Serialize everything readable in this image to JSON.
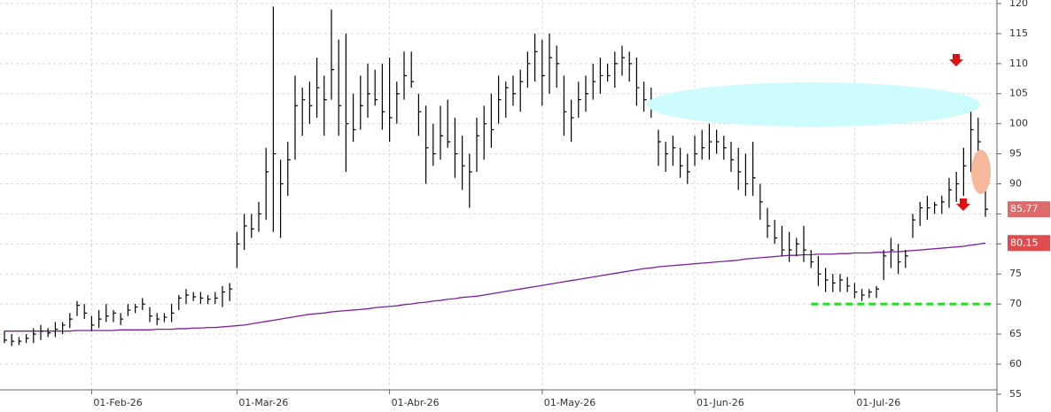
{
  "chart_data": {
    "type": "ohlc",
    "categories": [
      null,
      null,
      null,
      null,
      null,
      null,
      null,
      null,
      null,
      null,
      null,
      null,
      "01-Feb-26",
      null,
      null,
      null,
      null,
      null,
      null,
      null,
      null,
      null,
      null,
      null,
      null,
      null,
      null,
      null,
      null,
      null,
      null,
      null,
      "01-Mar-26",
      null,
      null,
      null,
      null,
      null,
      null,
      null,
      null,
      null,
      null,
      null,
      null,
      null,
      null,
      null,
      null,
      null,
      null,
      null,
      null,
      "01-Abr-26",
      null,
      null,
      null,
      null,
      null,
      null,
      null,
      null,
      null,
      null,
      null,
      null,
      null,
      null,
      null,
      null,
      null,
      null,
      null,
      null,
      "01-May-26",
      null,
      null,
      null,
      null,
      null,
      null,
      null,
      null,
      null,
      null,
      null,
      null,
      null,
      null,
      null,
      null,
      null,
      null,
      null,
      null,
      "01-Jun-26",
      null,
      null,
      null,
      null,
      null,
      null,
      null,
      null,
      null,
      null,
      null,
      null,
      null,
      null,
      null,
      null,
      null,
      null,
      null,
      null,
      null,
      "01-Jul-26",
      null,
      null,
      null,
      null,
      null,
      null,
      null,
      null,
      null,
      null,
      null,
      null,
      null,
      null,
      null,
      null,
      null,
      null
    ],
    "high": [
      65.5,
      65,
      64.5,
      65,
      66,
      66.5,
      66,
      67,
      67,
      68.5,
      70.5,
      70,
      68,
      69,
      70,
      69,
      68.5,
      70,
      70,
      71,
      69.5,
      68.5,
      68.5,
      70,
      71.5,
      72.5,
      72,
      72,
      71.5,
      72,
      73,
      73.5,
      82,
      85,
      85,
      87,
      96,
      119.5,
      94,
      97,
      108,
      106,
      107,
      111,
      108,
      119,
      114,
      115,
      105,
      108,
      110,
      109,
      110,
      111,
      107,
      112,
      112,
      105,
      103,
      100,
      103,
      104,
      101,
      98,
      95,
      101,
      103,
      105,
      108,
      107,
      108,
      109,
      112,
      115,
      114,
      115,
      113,
      108,
      104,
      107,
      108,
      110,
      111,
      110,
      112,
      113,
      112,
      111,
      107,
      106,
      99,
      97,
      98,
      96,
      95,
      98,
      99,
      100,
      99,
      98,
      97,
      96,
      95,
      97,
      90,
      86,
      84,
      83,
      82,
      81,
      83,
      79,
      78,
      76,
      75,
      75,
      74.5,
      73.5,
      72.5,
      72.5,
      73,
      79,
      81,
      80,
      79,
      85,
      87,
      88,
      87,
      88,
      91,
      92,
      96,
      102,
      101,
      89
    ],
    "low": [
      63.5,
      63,
      63.2,
      63.5,
      63.5,
      64,
      64.5,
      64.5,
      65,
      66,
      68,
      67.5,
      65.5,
      66,
      67,
      67,
      66.5,
      68,
      68.5,
      69,
      67,
      66.5,
      67,
      67,
      69,
      70,
      70.5,
      70,
      70,
      70,
      69.5,
      70.5,
      76,
      79,
      81,
      82,
      84,
      82,
      81,
      88,
      94,
      98,
      100,
      101,
      98,
      104,
      98,
      92,
      97,
      99,
      101,
      103,
      99,
      97,
      100,
      104,
      106,
      98,
      90,
      93,
      94,
      96,
      91,
      89,
      86,
      92,
      94,
      96,
      100,
      101,
      103,
      102,
      106,
      107,
      103,
      105,
      106,
      98,
      97,
      101,
      102,
      104,
      105,
      107,
      106,
      108,
      107,
      103,
      102,
      101,
      93,
      92,
      93,
      91,
      90,
      93,
      94,
      94,
      95,
      94,
      92,
      89,
      88,
      88,
      84,
      81,
      80,
      78,
      77,
      78,
      77,
      76,
      73,
      72,
      72,
      72,
      72,
      71,
      70.5,
      71,
      71,
      74,
      76,
      75,
      76,
      81,
      83,
      84,
      85,
      85,
      86,
      87,
      88,
      92,
      95,
      84.5
    ],
    "close": [
      64,
      63.8,
      63.8,
      64.3,
      65,
      65.5,
      65.2,
      65.8,
      66.5,
      67.5,
      69.8,
      68.5,
      66.5,
      67.5,
      68,
      68.5,
      67.5,
      69,
      69.5,
      70,
      68,
      67.5,
      67.8,
      68.5,
      71,
      71.5,
      71.2,
      71,
      70.8,
      71,
      72,
      72.5,
      80,
      83,
      82.5,
      85,
      92,
      95,
      90,
      94,
      103,
      104,
      103,
      106,
      104,
      109,
      103,
      100,
      99,
      103,
      105,
      104,
      102,
      101,
      105,
      108,
      107,
      102,
      96,
      95,
      98,
      97,
      95,
      93,
      92,
      98,
      100,
      99,
      104,
      106,
      105,
      107,
      110,
      112,
      108,
      111,
      110,
      102,
      101,
      104,
      105,
      107,
      108,
      108,
      110,
      111,
      110,
      106,
      104,
      103,
      97,
      95,
      96,
      93,
      92,
      95,
      96,
      97,
      97,
      96,
      94,
      92,
      90,
      91,
      87,
      83,
      81,
      79,
      79,
      80,
      79,
      77,
      75,
      74,
      73.5,
      74,
      73,
      72,
      71.5,
      72,
      72.5,
      78,
      79,
      77,
      78,
      84,
      86,
      86,
      86.5,
      87,
      89,
      90,
      93,
      99,
      97,
      85.77
    ],
    "color": "#000000",
    "moving_average": {
      "color": "#7b1fa2",
      "values": [
        65.5,
        65.5,
        65.5,
        65.5,
        65.5,
        65.5,
        65.5,
        65.5,
        65.5,
        65.5,
        65.6,
        65.6,
        65.6,
        65.6,
        65.6,
        65.6,
        65.7,
        65.7,
        65.7,
        65.7,
        65.7,
        65.8,
        65.8,
        65.8,
        65.9,
        65.9,
        66,
        66,
        66.1,
        66.1,
        66.2,
        66.3,
        66.4,
        66.5,
        66.7,
        66.9,
        67.1,
        67.3,
        67.5,
        67.7,
        67.9,
        68.1,
        68.3,
        68.4,
        68.5,
        68.7,
        68.8,
        68.9,
        69,
        69.1,
        69.2,
        69.4,
        69.5,
        69.6,
        69.7,
        69.9,
        70,
        70.2,
        70.3,
        70.5,
        70.6,
        70.8,
        70.9,
        71.1,
        71.2,
        71.3,
        71.5,
        71.7,
        71.9,
        72.1,
        72.3,
        72.5,
        72.7,
        72.9,
        73.1,
        73.3,
        73.5,
        73.7,
        73.9,
        74.1,
        74.3,
        74.5,
        74.7,
        74.9,
        75.1,
        75.3,
        75.5,
        75.7,
        75.9,
        76,
        76.2,
        76.3,
        76.4,
        76.5,
        76.6,
        76.7,
        76.8,
        76.9,
        77,
        77.1,
        77.2,
        77.3,
        77.5,
        77.6,
        77.7,
        77.8,
        77.9,
        78,
        78.1,
        78.1,
        78.2,
        78.2,
        78.3,
        78.3,
        78.3,
        78.4,
        78.4,
        78.5,
        78.5,
        78.5,
        78.6,
        78.6,
        78.7,
        78.7,
        78.8,
        78.9,
        79,
        79.1,
        79.2,
        79.3,
        79.4,
        79.5,
        79.6,
        79.8,
        79.95,
        80.15
      ]
    },
    "price_tags": [
      {
        "value": 85.77,
        "label": "85,77",
        "color": "#e06a6a"
      },
      {
        "value": 80.15,
        "label": "80,15",
        "color": "#dd4d4d"
      }
    ],
    "support": {
      "value": 70,
      "color": "#22dd22"
    },
    "ylim": [
      55.72,
      120.59
    ],
    "yticks": [
      55,
      60,
      65,
      70,
      75,
      80,
      85,
      90,
      95,
      100,
      105,
      110,
      115,
      120
    ],
    "grid": true
  }
}
